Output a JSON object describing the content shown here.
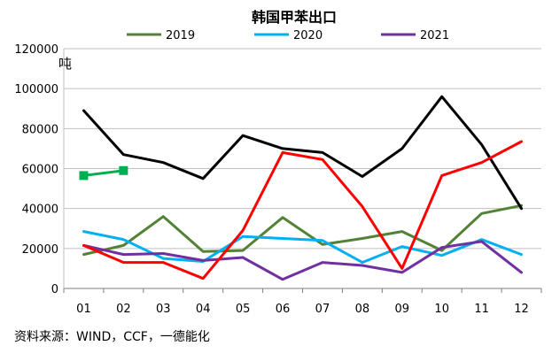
{
  "chart_data": {
    "type": "line",
    "title": "韩国甲苯出口",
    "ylabel": "吨",
    "xlabel": "",
    "ylim": [
      0,
      120000
    ],
    "yticks": [
      0,
      20000,
      40000,
      60000,
      80000,
      100000,
      120000
    ],
    "ytick_labels": [
      "0",
      "20000",
      "40000",
      "60000",
      "80000",
      "100000",
      "120000"
    ],
    "categories": [
      "01",
      "02",
      "03",
      "04",
      "05",
      "06",
      "07",
      "08",
      "09",
      "10",
      "11",
      "12"
    ],
    "grid": true,
    "legend_position": "top",
    "series": [
      {
        "name": "2019",
        "color": "#538135",
        "legend": true,
        "marker": false,
        "values": [
          17000,
          21500,
          36000,
          18500,
          19000,
          35500,
          22000,
          25000,
          28500,
          19000,
          37500,
          41500
        ]
      },
      {
        "name": "2020",
        "color": "#00b0f0",
        "legend": true,
        "marker": false,
        "values": [
          28500,
          24500,
          15000,
          13500,
          26000,
          25000,
          24000,
          13000,
          21000,
          16500,
          24500,
          17000
        ]
      },
      {
        "name": "2021",
        "color": "#7030a0",
        "legend": true,
        "marker": false,
        "values": [
          21500,
          17000,
          17500,
          14000,
          15500,
          4500,
          13000,
          11500,
          8000,
          20500,
          23500,
          8000
        ]
      },
      {
        "name": "",
        "color": "#000000",
        "legend": false,
        "marker": false,
        "values": [
          89000,
          67000,
          63000,
          55000,
          76500,
          70000,
          68000,
          56000,
          70000,
          96000,
          72000,
          40000
        ]
      },
      {
        "name": "",
        "color": "#ff0000",
        "legend": false,
        "marker": false,
        "values": [
          21500,
          13000,
          13000,
          5000,
          29000,
          68000,
          64500,
          41000,
          10000,
          56500,
          63000,
          73500
        ]
      },
      {
        "name": "",
        "color": "#00b050",
        "legend": false,
        "marker": true,
        "values": [
          56500,
          59000,
          null,
          null,
          null,
          null,
          null,
          null,
          null,
          null,
          null,
          null
        ]
      }
    ]
  },
  "source_text": "资料来源：WIND，CCF，一德能化"
}
